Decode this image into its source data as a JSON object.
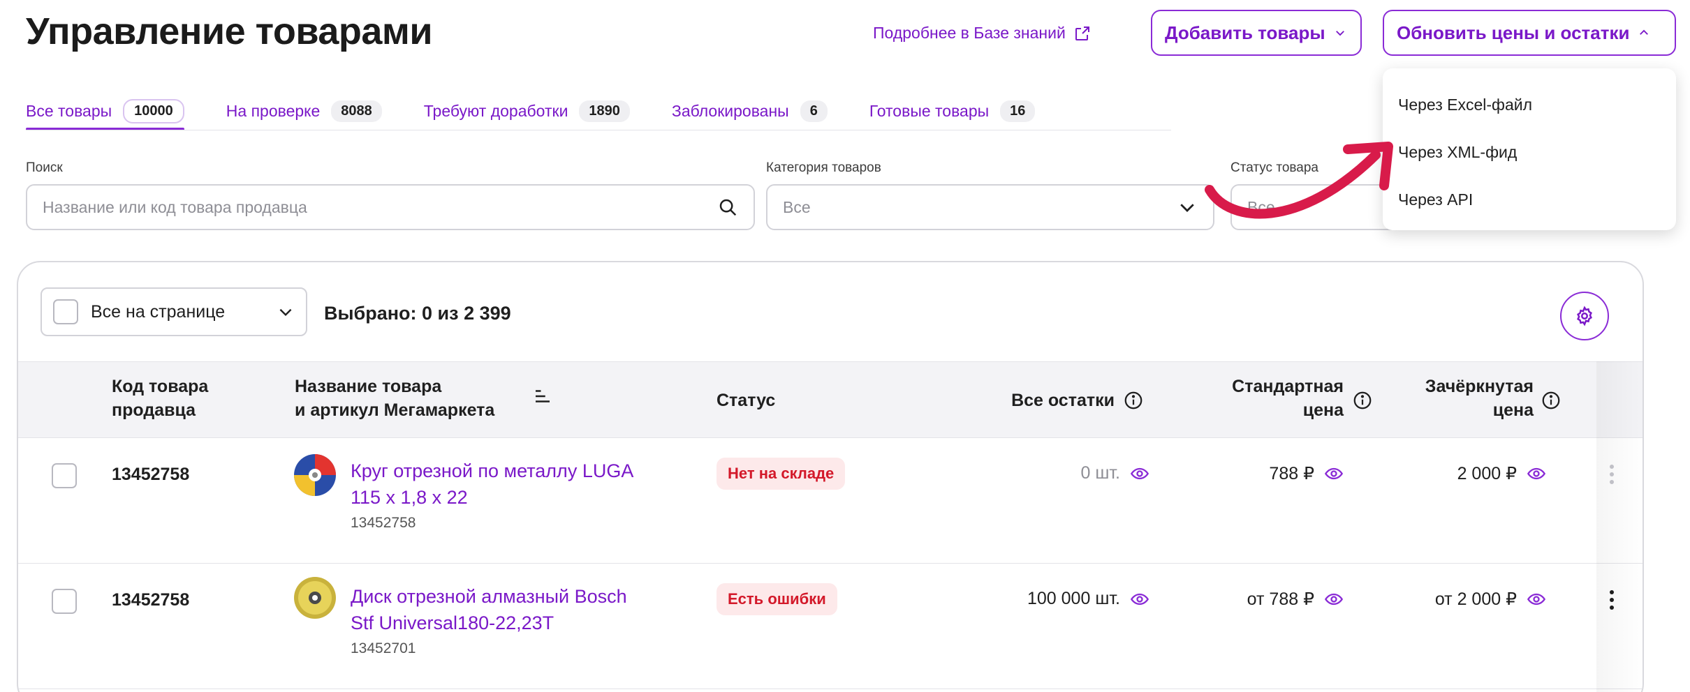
{
  "header": {
    "title": "Управление товарами",
    "kb_link": "Подробнее в Базе знаний",
    "add_button": "Добавить товары",
    "update_button": "Обновить цены и остатки"
  },
  "tabs": [
    {
      "label": "Все товары",
      "count": "10000"
    },
    {
      "label": "На проверке",
      "count": "8088"
    },
    {
      "label": "Требуют доработки",
      "count": "1890"
    },
    {
      "label": "Заблокированы",
      "count": "6"
    },
    {
      "label": "Готовые товары",
      "count": "16"
    }
  ],
  "filters": {
    "search_label": "Поиск",
    "search_placeholder": "Название или код товара продавца",
    "category_label": "Категория товаров",
    "category_value": "Все",
    "status_label": "Статус товара",
    "status_value": "Все"
  },
  "menu": {
    "items": [
      "Через Excel-файл",
      "Через XML-фид",
      "Через API"
    ]
  },
  "table": {
    "select_all": "Все на странице",
    "selected_text": "Выбрано: 0 из 2 399",
    "columns": {
      "code_l1": "Код товара",
      "code_l2": "продавца",
      "name_l1": "Название товара",
      "name_l2": "и артикул Мегамаркета",
      "status": "Статус",
      "stock": "Все остатки",
      "price_l1": "Стандартная",
      "price_l2": "цена",
      "crossed_l1": "Зачёркнутая",
      "crossed_l2": "цена"
    },
    "rows": [
      {
        "code": "13452758",
        "name_l1": "Круг отрезной по металлу LUGA",
        "name_l2": "115 х 1,8 х 22",
        "article": "13452758",
        "status": "Нет на складе",
        "stock": "0 шт.",
        "price": "788 ₽",
        "crossed": "2 000 ₽"
      },
      {
        "code": "13452758",
        "name_l1": "Диск отрезной алмазный Bosch",
        "name_l2": "Stf Universal180-22,23T",
        "article": "13452701",
        "status": "Есть ошибки",
        "stock": "100 000 шт.",
        "price": "от 788 ₽",
        "crossed": "от 2 000 ₽"
      }
    ]
  },
  "colors": {
    "accent": "#8a2bd6",
    "link": "#7a18c8",
    "error_bg": "#fde9ea",
    "error_text": "#d3192a",
    "arrow": "#d81b4a"
  }
}
